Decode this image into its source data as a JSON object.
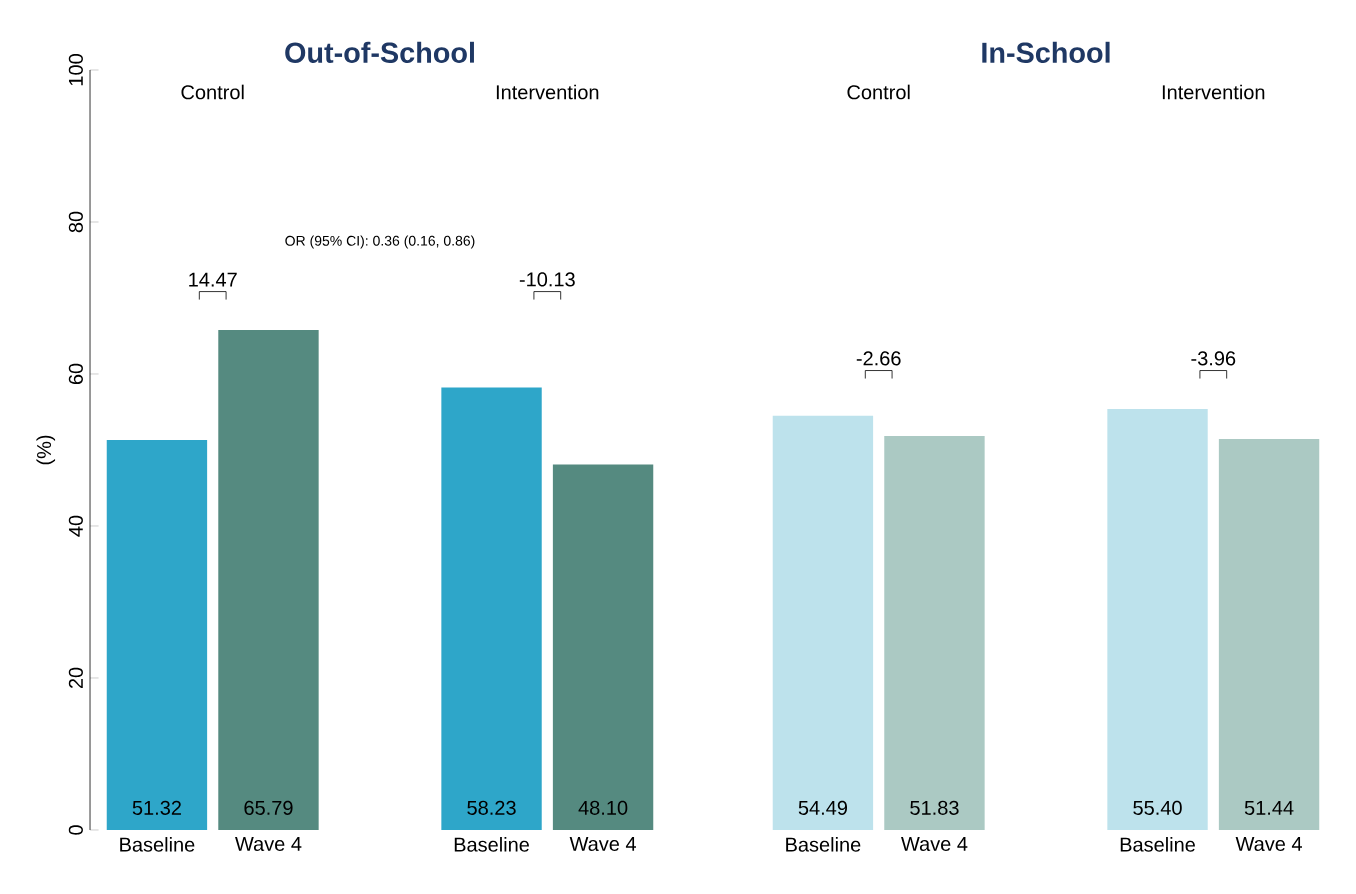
{
  "chart_data": [
    {
      "type": "bar",
      "title": "Out-of-School",
      "ylabel": "(%)",
      "categories": [
        "Baseline",
        "Wave 4",
        null,
        "Baseline",
        "Wave 4"
      ],
      "values": [
        51.32,
        65.79,
        null,
        58.23,
        48.1
      ],
      "value_labels": [
        "51.32",
        "65.79",
        null,
        "58.23",
        "48.10"
      ],
      "colors": [
        "#2ea6c9",
        "#558a80",
        null,
        "#2ea6c9",
        "#558a80"
      ],
      "ylim": [
        0,
        100
      ],
      "yticks": [
        0,
        20,
        40,
        60,
        80,
        100
      ],
      "annotations": [
        "Control",
        "Intervention",
        "14.47",
        "-10.13",
        "OR (95% CI): 0.36 (0.16, 0.86)"
      ]
    },
    {
      "type": "bar",
      "title": "In-School",
      "categories": [
        "Baseline",
        "Wave 4",
        null,
        "Baseline",
        "Wave 4"
      ],
      "values": [
        54.49,
        51.83,
        null,
        55.4,
        51.44
      ],
      "value_labels": [
        "54.49",
        "51.83",
        null,
        "55.40",
        "51.44"
      ],
      "colors": [
        "#bde2ec",
        "#abc9c3",
        null,
        "#bde2ec",
        "#abc9c3"
      ],
      "ylim": [
        0,
        100
      ],
      "tick_labels": "x",
      "annotations": [
        "Control",
        "Intervention",
        "-2.66",
        "-3.96"
      ]
    }
  ]
}
